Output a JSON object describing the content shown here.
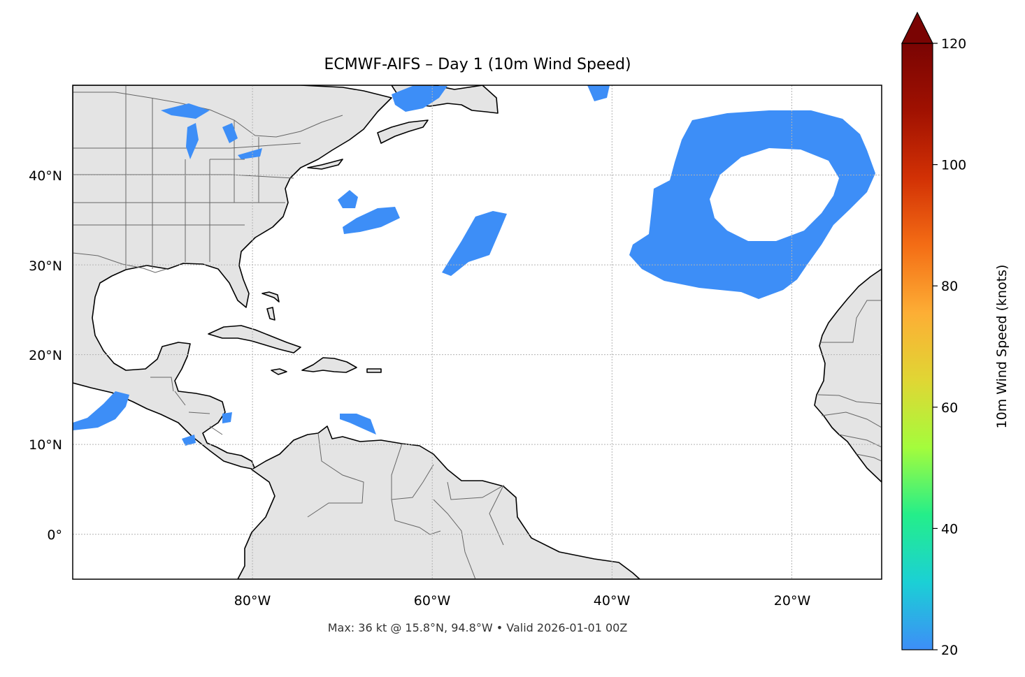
{
  "map": {
    "title": "ECMWF-AIFS – Day 1 (10m Wind Speed)",
    "footer": "Max: 36 kt @ 15.8°N, 94.8°W • Valid 2026-01-01 00Z",
    "extent": {
      "lon_min": -100,
      "lon_max": -10,
      "lat_min": -5,
      "lat_max": 50
    },
    "lon_ticks": [
      {
        "value": -80,
        "label": "80°W"
      },
      {
        "value": -60,
        "label": "60°W"
      },
      {
        "value": -40,
        "label": "40°W"
      },
      {
        "value": -20,
        "label": "20°W"
      }
    ],
    "lat_ticks": [
      {
        "value": 40,
        "label": "40°N"
      },
      {
        "value": 30,
        "label": "30°N"
      },
      {
        "value": 20,
        "label": "20°N"
      },
      {
        "value": 10,
        "label": "10°N"
      },
      {
        "value": 0,
        "label": "0°"
      }
    ],
    "land_color": "#e4e4e4",
    "gridlines": true
  },
  "colorbar": {
    "label": "10m Wind Speed (knots)",
    "min": 20,
    "max": 120,
    "extend": "max",
    "ticks": [
      "20",
      "40",
      "60",
      "80",
      "100",
      "120"
    ],
    "colormap": [
      "#3d8ef7",
      "#1bd0d5",
      "#24ee8a",
      "#a4fc3c",
      "#e0d634",
      "#fdae35",
      "#f46d15",
      "#d23105",
      "#a01101",
      "#7a0403"
    ]
  }
}
